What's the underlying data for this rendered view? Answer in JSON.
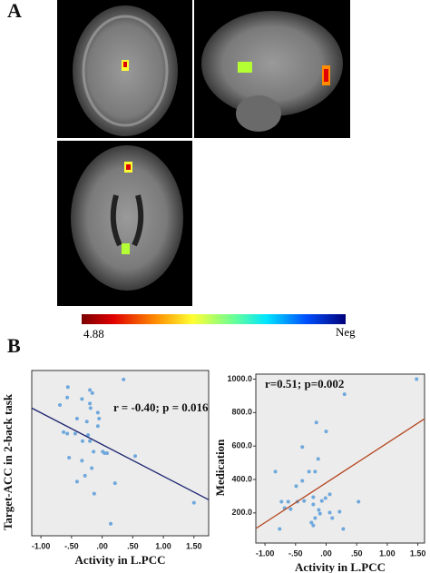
{
  "panels": {
    "a": "A",
    "b": "B"
  },
  "colorbar": {
    "low_label": "4.88",
    "high_label": "Neg"
  },
  "chart_data": [
    {
      "type": "scatter",
      "x_label": "Activity in L.PCC",
      "y_label": "Target-ACC in 2-back task",
      "annotation": "r = -0.40;  p = 0.016",
      "color": "#6fa8dc",
      "xlim": [
        -1.15,
        1.74
      ],
      "ylim": [
        0,
        1.1
      ],
      "xticks": [
        {
          "value": -1,
          "label": "-1.00"
        },
        {
          "value": -0.5,
          "label": "-.50"
        },
        {
          "value": 0,
          "label": ".00"
        },
        {
          "value": 0.5,
          "label": ".50"
        },
        {
          "value": 1,
          "label": "1.00"
        },
        {
          "value": 1.5,
          "label": "1.50"
        }
      ],
      "x": [
        0.35,
        -0.56,
        -0.2,
        -0.16,
        -0.57,
        -0.33,
        -0.2,
        -0.69,
        -0.19,
        -0.07,
        -0.41,
        -0.05,
        -0.25,
        -0.07,
        -0.63,
        -0.57,
        -0.44,
        -0.23,
        -0.32,
        -0.2,
        -0.14,
        0.01,
        -0.54,
        0.04,
        0.08,
        0.54,
        -0.33,
        -0.17,
        -0.28,
        -0.41,
        0.21,
        -0.13,
        0.14,
        1.5
      ],
      "y": [
        1.04,
        0.99,
        0.97,
        0.95,
        0.92,
        0.91,
        0.88,
        0.87,
        0.85,
        0.82,
        0.78,
        0.78,
        0.76,
        0.73,
        0.69,
        0.68,
        0.68,
        0.67,
        0.63,
        0.63,
        0.56,
        0.56,
        0.52,
        0.55,
        0.55,
        0.53,
        0.5,
        0.45,
        0.4,
        0.36,
        0.35,
        0.28,
        0.08,
        0.22
      ],
      "fit": {
        "color": "#1c2570",
        "x": [
          -1.15,
          1.74
        ],
        "y": [
          0.85,
          0.24
        ]
      }
    },
    {
      "type": "scatter",
      "x_label": "Activity in L.PCC",
      "y_label": "Medication",
      "annotation": "r=0.51;  p=0.002",
      "color": "#6fa8dc",
      "xlim": [
        -1.15,
        1.61
      ],
      "ylim": [
        20,
        1030
      ],
      "xticks": [
        {
          "value": -1,
          "label": "-1.00"
        },
        {
          "value": -0.5,
          "label": "-.50"
        },
        {
          "value": 0,
          "label": ".00"
        },
        {
          "value": 0.5,
          "label": ".50"
        },
        {
          "value": 1,
          "label": "1.00"
        },
        {
          "value": 1.5,
          "label": "1.50"
        }
      ],
      "yticks": [
        {
          "value": 200,
          "label": "200.0"
        },
        {
          "value": 400,
          "label": "400.0"
        },
        {
          "value": 600,
          "label": "600.0"
        },
        {
          "value": 800,
          "label": "800.0"
        },
        {
          "value": 1000,
          "label": "1000.0"
        }
      ],
      "x": [
        1.48,
        0.3,
        -0.16,
        0.0,
        -0.39,
        -0.13,
        -0.83,
        -0.28,
        -0.18,
        -0.39,
        -0.49,
        0.06,
        -0.21,
        -0.73,
        -0.62,
        -0.47,
        -0.36,
        -0.07,
        -0.01,
        0.53,
        -0.21,
        -0.68,
        -0.58,
        -0.12,
        0.22,
        -0.1,
        0.06,
        -0.18,
        -0.24,
        -0.21,
        0.1,
        -0.76,
        0.28
      ],
      "y": [
        1000,
        910,
        741,
        687,
        594,
        523,
        447,
        447,
        447,
        392,
        360,
        311,
        294,
        267,
        267,
        267,
        272,
        272,
        289,
        267,
        251,
        229,
        223,
        218,
        207,
        196,
        202,
        169,
        142,
        125,
        169,
        104,
        104
      ],
      "fit": {
        "color": "#b5461e",
        "x": [
          -1.14,
          1.61
        ],
        "y": [
          109,
          763
        ]
      }
    }
  ]
}
